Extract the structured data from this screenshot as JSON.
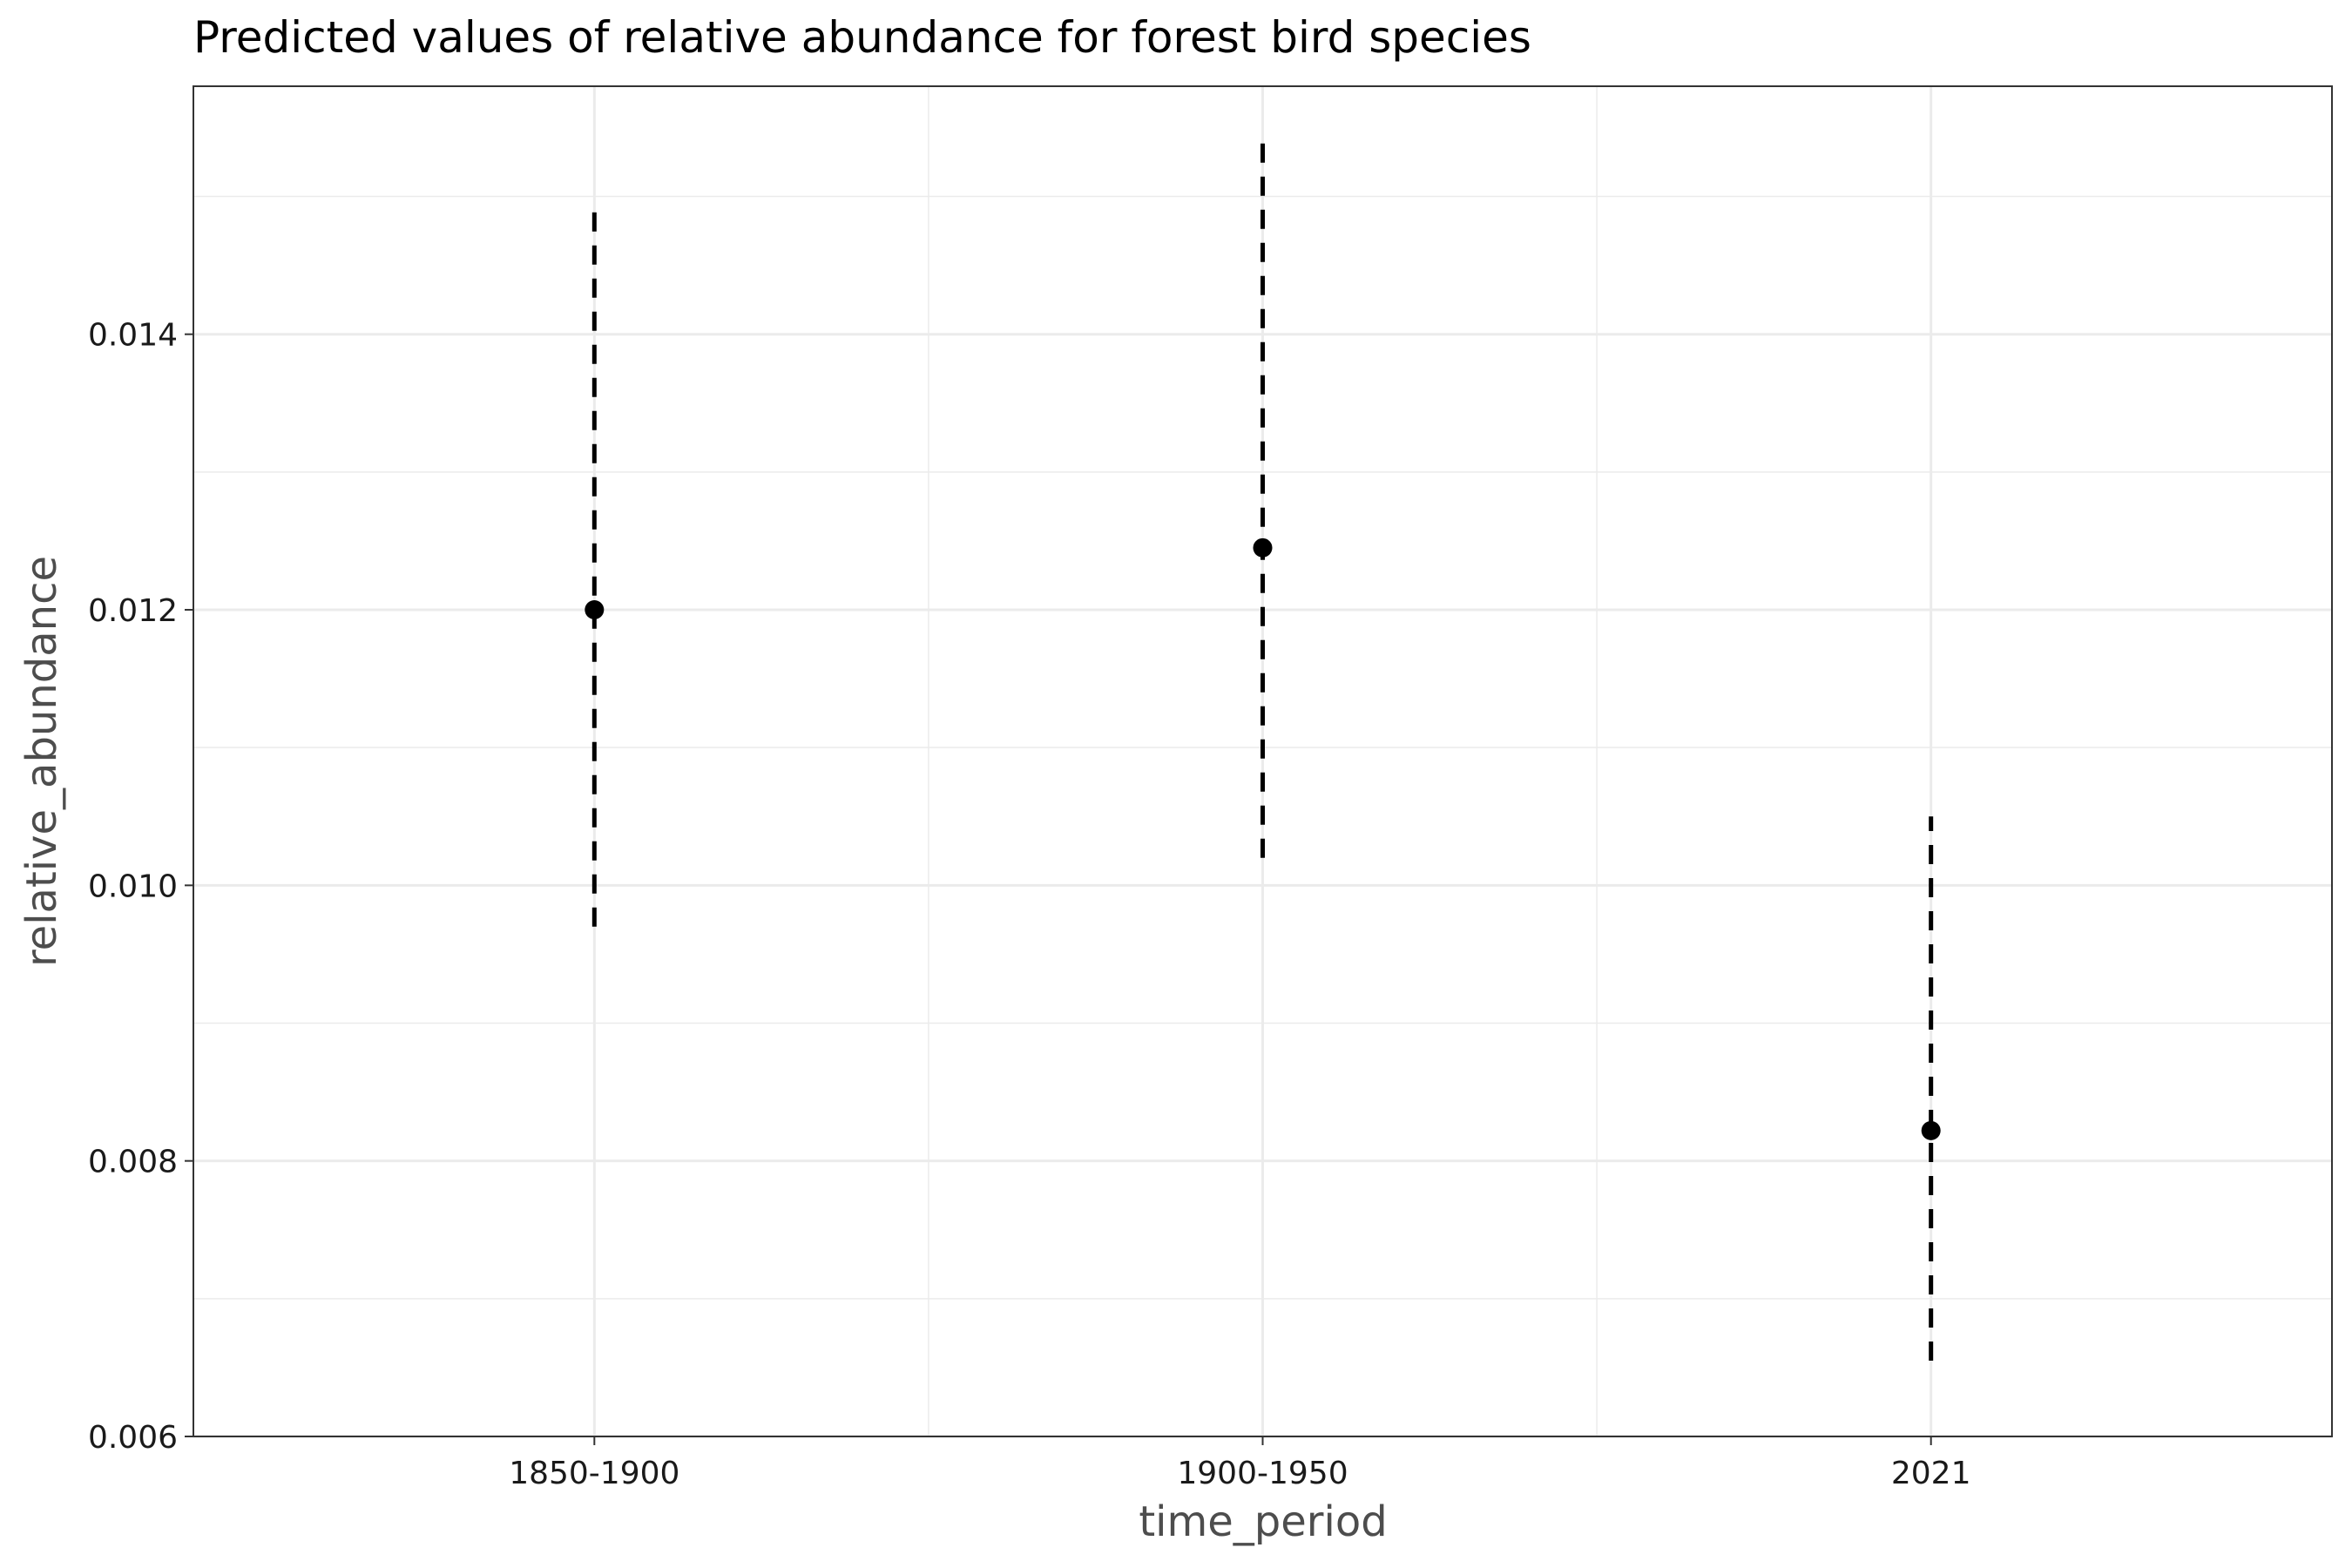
{
  "chart_data": {
    "type": "scatter",
    "title": "Predicted values of relative abundance for forest bird species",
    "xlabel": "time_period",
    "ylabel": "relative_abundance",
    "categories": [
      "1850-1900",
      "1900-1950",
      "2021"
    ],
    "series": [
      {
        "values": [
          0.012,
          0.01245,
          0.00822
        ],
        "ci_low": [
          0.0097,
          0.0102,
          0.00655
        ],
        "ci_high": [
          0.0149,
          0.01545,
          0.0105
        ]
      }
    ],
    "ylim": [
      0.006,
      0.0158
    ],
    "yticks": [
      {
        "value": 0.006,
        "label": "0.006"
      },
      {
        "value": 0.008,
        "label": "0.008"
      },
      {
        "value": 0.01,
        "label": "0.010"
      },
      {
        "value": 0.012,
        "label": "0.012"
      },
      {
        "value": 0.014,
        "label": "0.014"
      }
    ],
    "grid": true,
    "error_bar_style": "dashed",
    "point_color": "#000000",
    "grid_color": "#ebebeb"
  }
}
